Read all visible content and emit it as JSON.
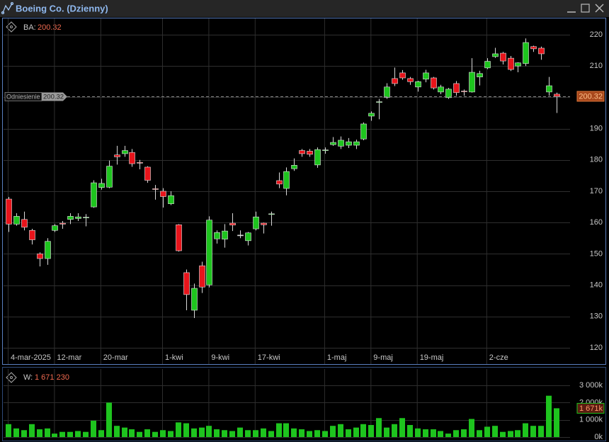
{
  "chart_data": [
    {
      "type": "candlestick",
      "title": "Boeing Co. (Dzienny)",
      "current": {
        "label": "BA:",
        "value": 200.32
      },
      "reference": {
        "label": "Odniesienie",
        "value": 200.32
      },
      "categories": [
        "4-mar-2025",
        null,
        null,
        null,
        null,
        null,
        "12-mar",
        null,
        null,
        null,
        null,
        null,
        "20-mar",
        null,
        null,
        null,
        null,
        null,
        null,
        null,
        "1-kwi",
        null,
        null,
        null,
        null,
        null,
        "9-kwi",
        null,
        null,
        null,
        null,
        null,
        "17-kwi",
        null,
        null,
        null,
        null,
        null,
        null,
        null,
        null,
        "1-maj",
        null,
        null,
        null,
        null,
        null,
        "9-maj",
        null,
        null,
        null,
        null,
        null,
        "19-maj",
        null,
        null,
        null,
        null,
        null,
        null,
        null,
        null,
        "2-cze",
        null,
        null,
        null,
        null,
        null,
        null,
        null,
        null,
        null
      ],
      "open": [
        167.5,
        159.5,
        161,
        157.5,
        150,
        148.5,
        157.5,
        159.8,
        161,
        161.3,
        161.5,
        165,
        171.2,
        171.3,
        181.6,
        182,
        182.4,
        179.2,
        177.7,
        170.8,
        170,
        166,
        159.3,
        144,
        132,
        146.2,
        140.1,
        154.8,
        154.7,
        159.8,
        156,
        154.2,
        158,
        159.8,
        162.7,
        173.4,
        170.9,
        177.2,
        183,
        182.8,
        178.4,
        183.1,
        184.9,
        184.4,
        184.7,
        184.7,
        186.7,
        194,
        198.5,
        200,
        206,
        207.8,
        206,
        203.3,
        205.8,
        206.2,
        201.7,
        199.9,
        204.4,
        202,
        201.7,
        206.5,
        209.4,
        213,
        214.1,
        212.5,
        210,
        210.8,
        216.2,
        215.7,
        201.7,
        201
      ],
      "high": [
        168.2,
        163,
        163.5,
        158,
        150.5,
        155,
        159.5,
        160.5,
        163,
        163,
        162.7,
        173.5,
        174,
        179.8,
        184.5,
        184.5,
        183.5,
        180,
        178,
        172,
        171,
        170,
        159.5,
        145,
        140.5,
        147.5,
        162,
        157.5,
        159.5,
        163,
        157.5,
        157,
        163.5,
        160,
        163.5,
        176,
        177.6,
        180.5,
        183.5,
        183.5,
        184,
        184,
        187.3,
        187.5,
        187,
        186.5,
        192,
        195.5,
        199.5,
        204.5,
        209.5,
        208.7,
        206.5,
        205.3,
        208.8,
        206.5,
        204,
        203,
        205.2,
        202.5,
        212.5,
        208.5,
        212.5,
        215.8,
        214.5,
        213.2,
        211.2,
        218.8,
        216.5,
        216.2,
        206.5,
        201.5
      ],
      "low": [
        157,
        159,
        157.5,
        153,
        146,
        146.5,
        157,
        158,
        159.5,
        160.5,
        158.8,
        164.7,
        170.5,
        171,
        178.5,
        181,
        177.8,
        177,
        172.7,
        167.3,
        164.8,
        165.6,
        150.7,
        132,
        129.5,
        137.5,
        139.3,
        153.3,
        152,
        157.3,
        155,
        152.7,
        157.5,
        156.5,
        159,
        171,
        168.7,
        176.5,
        181,
        181,
        177.5,
        182,
        184.5,
        183.5,
        183.8,
        183.5,
        186.3,
        192.5,
        193,
        199.5,
        203.6,
        205.6,
        204,
        201.8,
        204.8,
        202.5,
        201,
        199.5,
        200.5,
        200.5,
        201.5,
        203.8,
        209,
        212.6,
        210.5,
        208.4,
        208,
        210,
        214.5,
        212,
        200.5,
        195
      ],
      "close": [
        159.5,
        162,
        158.5,
        154.5,
        148.5,
        154,
        159,
        159.5,
        162,
        161.8,
        161.7,
        172.7,
        172.5,
        178,
        181,
        183,
        178.8,
        179,
        173.5,
        170.6,
        168.3,
        168.6,
        151,
        137,
        139,
        139.4,
        160.8,
        156.8,
        157.3,
        159.2,
        156,
        156.7,
        161.8,
        159.3,
        162.8,
        172.3,
        176.3,
        178.3,
        182,
        181.8,
        183.3,
        183.2,
        185.6,
        186.3,
        185.8,
        185.8,
        191.5,
        194.9,
        198.6,
        203.3,
        204.4,
        206.2,
        205,
        205,
        207.8,
        203,
        203.3,
        202.6,
        201.5,
        201.9,
        208,
        207.6,
        211.5,
        213.9,
        211.6,
        208.9,
        211,
        217.5,
        215.5,
        213.9,
        203.7,
        200.32
      ],
      "up_color": "#1ec41e",
      "down_color": "#e8141b",
      "ylim": [
        114.8,
        225.2
      ],
      "yticks": [
        120,
        130,
        140,
        150,
        160,
        170,
        180,
        190,
        200,
        210,
        220
      ],
      "grid": true
    },
    {
      "type": "bar",
      "current": {
        "label": "W:",
        "value": 1671230,
        "value_label": "1 671 230",
        "tag_label": "1 671k"
      },
      "values": [
        750000,
        500000,
        400000,
        750000,
        450000,
        500000,
        200000,
        300000,
        300000,
        350000,
        300000,
        950000,
        400000,
        2000000,
        650000,
        550000,
        450000,
        300000,
        450000,
        300000,
        400000,
        350000,
        850000,
        800000,
        500000,
        550000,
        650000,
        450000,
        400000,
        350000,
        550000,
        400000,
        400000,
        500000,
        350000,
        800000,
        800000,
        500000,
        450000,
        350000,
        400000,
        350000,
        650000,
        750000,
        450000,
        550000,
        750000,
        700000,
        1100000,
        550000,
        750000,
        1100000,
        700000,
        500000,
        450000,
        450000,
        350000,
        200000,
        400000,
        450000,
        1050000,
        400000,
        600000,
        650000,
        300000,
        350000,
        400000,
        800000,
        650000,
        650000,
        2400000,
        1671230
      ],
      "color": "#1ec41e",
      "ylim": [
        0,
        3950000
      ],
      "yticks": [
        {
          "value": 0,
          "label": "0k"
        },
        {
          "value": 1000000,
          "label": "1 000k"
        },
        {
          "value": 2000000,
          "label": "2 000k"
        },
        {
          "value": 3000000,
          "label": "3 000k"
        }
      ],
      "grid": true
    }
  ]
}
